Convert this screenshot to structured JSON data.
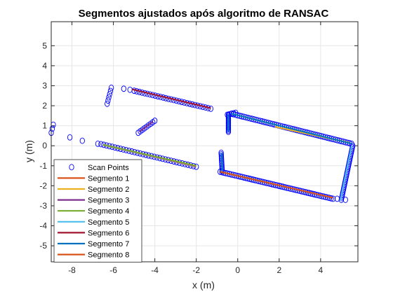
{
  "chart_data": {
    "type": "scatter",
    "title": "Segmentos ajustados após algoritmo de RANSAC",
    "xlabel": "x (m)",
    "ylabel": "y (m)",
    "xlim": [
      -9,
      5.8
    ],
    "ylim": [
      -5.8,
      6.2
    ],
    "xticks": [
      -8,
      -6,
      -4,
      -2,
      0,
      2,
      4
    ],
    "yticks": [
      -5,
      -4,
      -3,
      -2,
      -1,
      0,
      1,
      2,
      3,
      4,
      5
    ],
    "xtick_labels": [
      "-8",
      "-6",
      "-4",
      "-2",
      "0",
      "2",
      "4"
    ],
    "ytick_labels": [
      "-5",
      "-4",
      "-3",
      "-2",
      "-1",
      "0",
      "1",
      "2",
      "3",
      "4",
      "5"
    ],
    "grid": true,
    "legend_position": "bottom-left",
    "scan_points": {
      "name": "Scan Points",
      "color": "#0000ff",
      "marker": "circle-open",
      "paths": [
        {
          "from": [
            -0.3,
            1.6
          ],
          "to": [
            5.5,
            0.1
          ],
          "n": 60
        },
        {
          "from": [
            5.55,
            0.0
          ],
          "to": [
            5.0,
            -2.7
          ],
          "n": 34
        },
        {
          "from": [
            -0.85,
            -1.3
          ],
          "to": [
            4.6,
            -2.65
          ],
          "n": 62
        },
        {
          "from": [
            -0.8,
            -0.35
          ],
          "to": [
            -0.75,
            -1.25
          ],
          "n": 12
        },
        {
          "from": [
            -0.45,
            1.55
          ],
          "to": [
            -0.45,
            0.7
          ],
          "n": 14
        },
        {
          "from": [
            -0.5,
            1.55
          ],
          "to": [
            -0.1,
            1.65
          ],
          "n": 5
        },
        {
          "from": [
            -5.0,
            2.75
          ],
          "to": [
            -1.3,
            1.85
          ],
          "n": 30
        },
        {
          "from": [
            -5.5,
            2.85
          ],
          "to": [
            -5.2,
            2.8
          ],
          "n": 2
        },
        {
          "from": [
            -6.1,
            2.9
          ],
          "to": [
            -6.3,
            2.1
          ],
          "n": 6
        },
        {
          "from": [
            -6.6,
            0.08
          ],
          "to": [
            -2.0,
            -1.05
          ],
          "n": 35
        },
        {
          "from": [
            -4.0,
            1.25
          ],
          "to": [
            -4.8,
            0.65
          ],
          "n": 9
        }
      ],
      "extra": [
        [
          -8.9,
          1.05
        ],
        [
          -8.95,
          0.85
        ],
        [
          -9.0,
          0.65
        ],
        [
          -8.1,
          0.42
        ],
        [
          -7.5,
          0.25
        ],
        [
          -6.75,
          0.1
        ],
        [
          4.8,
          -2.65
        ],
        [
          5.2,
          -2.7
        ]
      ]
    },
    "series": [
      {
        "name": "Segmento 1",
        "color": "#d95319",
        "x": [
          -6.5,
          -2.0
        ],
        "y": [
          0.05,
          -1.02
        ]
      },
      {
        "name": "Segmento 2",
        "color": "#edb120",
        "x": [
          1.8,
          5.4
        ],
        "y": [
          0.95,
          0.15
        ]
      },
      {
        "name": "Segmento 3",
        "color": "#7e2f8e",
        "x": [
          -4.1,
          -4.75
        ],
        "y": [
          1.2,
          0.7
        ]
      },
      {
        "name": "Segmento 4",
        "color": "#77ac30",
        "x": [
          -6.5,
          -2.0
        ],
        "y": [
          0.05,
          -1.0
        ]
      },
      {
        "name": "Segmento 5",
        "color": "#4dbeee",
        "x": [
          5.5,
          4.95
        ],
        "y": [
          0.0,
          -2.75
        ]
      },
      {
        "name": "Segmento 6",
        "color": "#a2142f",
        "x": [
          -5.1,
          -1.3
        ],
        "y": [
          2.82,
          1.88
        ]
      },
      {
        "name": "Segmento 7",
        "color": "#0072bd",
        "x": [
          -0.3,
          5.5
        ],
        "y": [
          1.6,
          0.1
        ]
      },
      {
        "name": "Segmento 8",
        "color": "#d95319",
        "x": [
          -0.85,
          4.6
        ],
        "y": [
          -1.3,
          -2.6
        ]
      }
    ],
    "extra_lines": [
      {
        "color": "#0072bd",
        "x": [
          -0.45,
          -0.45
        ],
        "y": [
          1.55,
          0.7
        ]
      },
      {
        "color": "#0072bd",
        "x": [
          -0.78,
          -0.75
        ],
        "y": [
          -0.35,
          -1.25
        ]
      },
      {
        "color": "#0072bd",
        "x": [
          -0.85,
          1.5
        ],
        "y": [
          -1.3,
          -1.85
        ]
      }
    ]
  }
}
